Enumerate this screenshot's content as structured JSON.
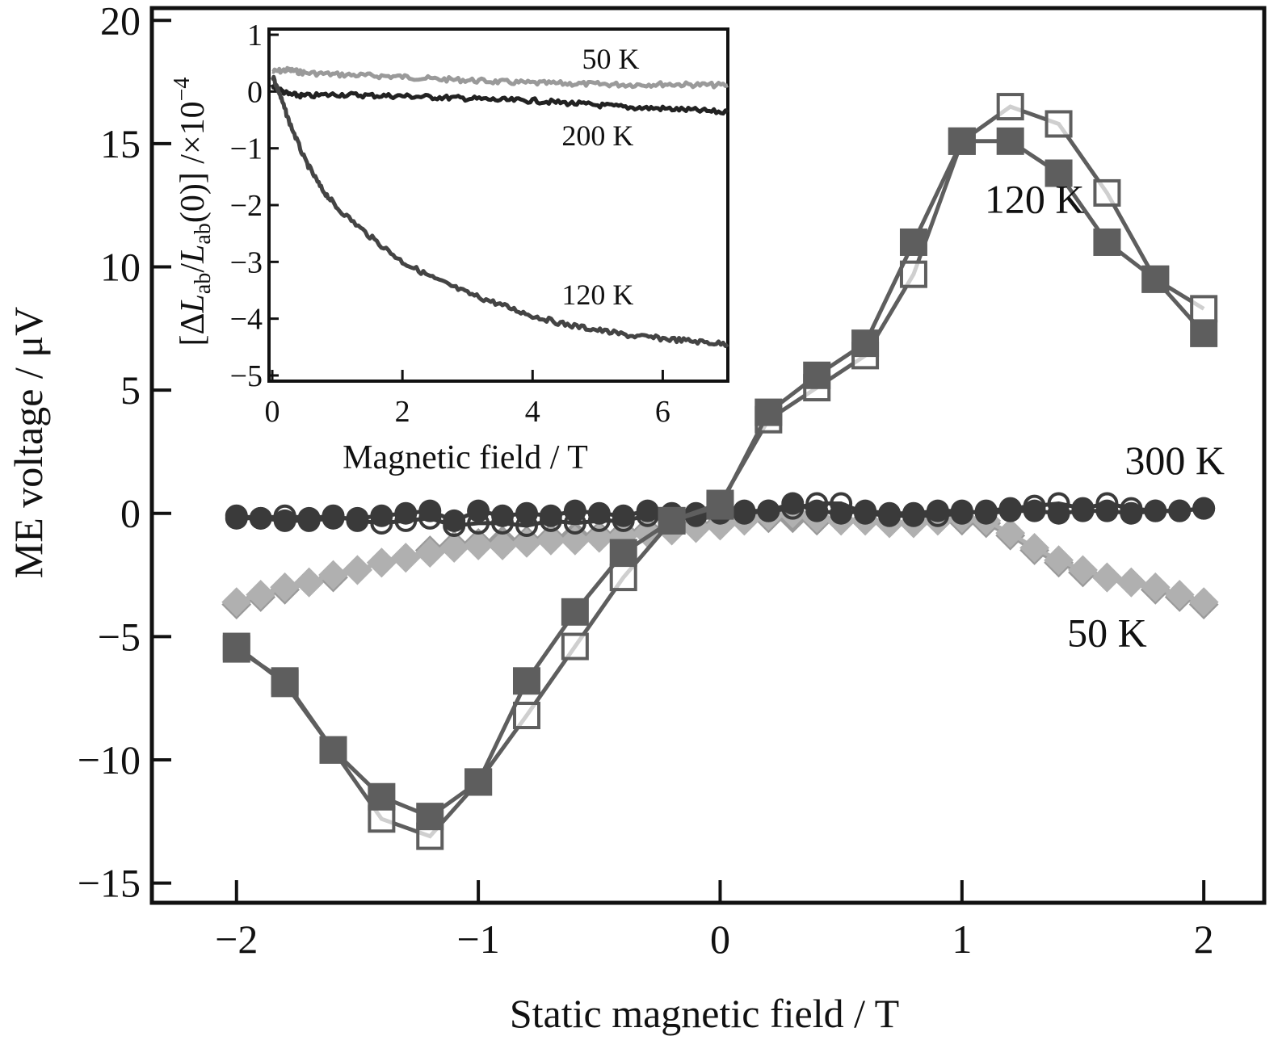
{
  "colors": {
    "dark": "#3a3a3a",
    "mid": "#5e5e5e",
    "light": "#9a9a9a",
    "axis": "#111111"
  },
  "chart_data": [
    {
      "type": "scatter",
      "xlabel": "Static magnetic field / T",
      "ylabel": "ME voltage / μV",
      "xlim": [
        -2.35,
        2.25
      ],
      "ylim": [
        -15.8,
        20.5
      ],
      "xticks": [
        -2,
        -1,
        0,
        1,
        2
      ],
      "xtick_labels": [
        "−2",
        "−1",
        "0",
        "1",
        "2"
      ],
      "yticks": [
        -15,
        -10,
        -5,
        0,
        5,
        10,
        15,
        20
      ],
      "ytick_labels": [
        "−15",
        "−10",
        "−5",
        "0",
        "5",
        "10",
        "15",
        "20"
      ],
      "annotations": [
        {
          "text": "120 K",
          "x": 1.3,
          "y": 12.2
        },
        {
          "text": "300 K",
          "x": 1.88,
          "y": 1.6
        },
        {
          "text": "50 K",
          "x": 1.6,
          "y": -5.4
        }
      ],
      "series": [
        {
          "label_ref": "120 K",
          "marker": "square-filled",
          "color": "#5e5e5e",
          "x": [
            -2.0,
            -1.8,
            -1.6,
            -1.4,
            -1.2,
            -1.0,
            -0.8,
            -0.6,
            -0.4,
            -0.2,
            0.0,
            0.2,
            0.4,
            0.6,
            0.8,
            1.0,
            1.2,
            1.4,
            1.6,
            1.8,
            2.0
          ],
          "y": [
            -5.5,
            -6.8,
            -9.6,
            -11.5,
            -12.3,
            -10.9,
            -6.8,
            -4.0,
            -1.6,
            -0.3,
            0.3,
            4.1,
            5.6,
            6.9,
            11.0,
            15.1,
            15.1,
            13.8,
            11.0,
            9.5,
            7.3
          ]
        },
        {
          "label_ref": "120 K",
          "marker": "square-open",
          "color": "#5e5e5e",
          "x": [
            -2.0,
            -1.8,
            -1.6,
            -1.4,
            -1.2,
            -1.0,
            -0.8,
            -0.6,
            -0.4,
            -0.2,
            0.0,
            0.2,
            0.4,
            0.6,
            0.8,
            1.0,
            1.2,
            1.4,
            1.6,
            1.8,
            2.0
          ],
          "y": [
            -5.4,
            -6.9,
            -9.6,
            -12.4,
            -13.1,
            -10.9,
            -8.2,
            -5.4,
            -2.6,
            -0.3,
            0.4,
            3.8,
            5.1,
            6.4,
            9.7,
            15.1,
            16.5,
            15.8,
            13.0,
            9.5,
            8.3
          ]
        },
        {
          "label_ref": "300 K",
          "marker": "circle-filled",
          "color": "#3a3a3a",
          "x": [
            -2.0,
            -1.9,
            -1.8,
            -1.7,
            -1.6,
            -1.5,
            -1.4,
            -1.3,
            -1.2,
            -1.1,
            -1.0,
            -0.9,
            -0.8,
            -0.7,
            -0.6,
            -0.5,
            -0.4,
            -0.3,
            -0.2,
            -0.1,
            0.0,
            0.1,
            0.2,
            0.3,
            0.4,
            0.5,
            0.6,
            0.7,
            0.8,
            0.9,
            1.0,
            1.1,
            1.2,
            1.3,
            1.4,
            1.5,
            1.6,
            1.7,
            1.8,
            1.9,
            2.0
          ],
          "y": [
            -0.2,
            -0.2,
            -0.3,
            -0.3,
            -0.2,
            -0.2,
            -0.1,
            0.0,
            0.1,
            -0.3,
            0.1,
            -0.1,
            0.0,
            -0.1,
            0.1,
            0.0,
            -0.1,
            0.1,
            0.0,
            -0.1,
            0.0,
            0.1,
            0.1,
            0.4,
            0.1,
            0.0,
            0.1,
            0.0,
            0.0,
            0.1,
            0.1,
            0.0,
            0.1,
            0.1,
            0.0,
            0.1,
            0.1,
            0.0,
            0.1,
            0.1,
            0.2
          ]
        },
        {
          "label_ref": "300 K",
          "marker": "circle-open",
          "color": "#3a3a3a",
          "x": [
            -2.0,
            -1.9,
            -1.8,
            -1.7,
            -1.6,
            -1.5,
            -1.4,
            -1.3,
            -1.2,
            -1.1,
            -1.0,
            -0.9,
            -0.8,
            -0.7,
            -0.6,
            -0.5,
            -0.4,
            -0.3,
            -0.2,
            -0.1,
            0.0,
            0.1,
            0.2,
            0.3,
            0.4,
            0.5,
            0.6,
            0.7,
            0.8,
            0.9,
            1.0,
            1.1,
            1.2,
            1.3,
            1.4,
            1.5,
            1.6,
            1.7,
            1.8,
            1.9,
            2.0
          ],
          "y": [
            -0.1,
            -0.2,
            -0.1,
            -0.2,
            -0.1,
            -0.3,
            -0.4,
            -0.3,
            -0.2,
            -0.5,
            -0.4,
            -0.4,
            -0.5,
            -0.3,
            -0.4,
            -0.3,
            -0.3,
            -0.1,
            -0.1,
            0.0,
            0.1,
            0.0,
            0.1,
            0.2,
            0.4,
            0.4,
            0.0,
            -0.1,
            -0.1,
            -0.1,
            0.0,
            0.1,
            0.2,
            0.3,
            0.4,
            0.2,
            0.4,
            0.2,
            0.1,
            0.1,
            0.2
          ]
        },
        {
          "label_ref": "50 K",
          "marker": "diamond-filled",
          "color": "#9a9a9a",
          "x": [
            -2.0,
            -1.9,
            -1.8,
            -1.7,
            -1.6,
            -1.5,
            -1.4,
            -1.3,
            -1.2,
            -1.1,
            -1.0,
            -0.9,
            -0.8,
            -0.7,
            -0.6,
            -0.5,
            -0.4,
            -0.3,
            -0.2,
            -0.1,
            0.0,
            0.1,
            0.2,
            0.3,
            0.4,
            0.5,
            0.6,
            0.7,
            0.8,
            0.9,
            1.0,
            1.1,
            1.2,
            1.3,
            1.4,
            1.5,
            1.6,
            1.7,
            1.8,
            1.9,
            2.0
          ],
          "y": [
            -3.7,
            -3.4,
            -3.1,
            -2.8,
            -2.6,
            -2.3,
            -2.0,
            -1.8,
            -1.5,
            -1.3,
            -1.2,
            -1.1,
            -1.1,
            -1.0,
            -0.9,
            -0.9,
            -0.8,
            -0.7,
            -0.6,
            -0.5,
            -0.4,
            -0.3,
            -0.2,
            -0.2,
            -0.3,
            -0.3,
            -0.3,
            -0.4,
            -0.4,
            -0.3,
            -0.3,
            -0.4,
            -0.9,
            -1.5,
            -2.0,
            -2.4,
            -2.6,
            -2.8,
            -3.1,
            -3.4,
            -3.7
          ]
        },
        {
          "label_ref": "50 K",
          "marker": "diamond-light",
          "color": "#b0b0b0",
          "x": [
            -2.0,
            -1.9,
            -1.8,
            -1.7,
            -1.6,
            -1.5,
            -1.4,
            -1.3,
            -1.2,
            -1.1,
            -1.0,
            -0.9,
            -0.8,
            -0.7,
            -0.6,
            -0.5,
            -0.4,
            -0.3,
            -0.2,
            -0.1,
            0.0,
            0.1,
            0.2,
            0.3,
            0.4,
            0.5,
            0.6,
            0.7,
            0.8,
            0.9,
            1.0,
            1.1,
            1.2,
            1.3,
            1.4,
            1.5,
            1.6,
            1.7,
            1.8,
            1.9,
            2.0
          ],
          "y": [
            -3.6,
            -3.3,
            -3.0,
            -2.8,
            -2.5,
            -2.3,
            -2.0,
            -1.8,
            -1.6,
            -1.4,
            -1.3,
            -1.3,
            -1.2,
            -1.1,
            -1.1,
            -1.0,
            -0.9,
            -0.8,
            -0.7,
            -0.6,
            -0.5,
            -0.3,
            -0.1,
            0.0,
            -0.2,
            -0.3,
            -0.3,
            -0.4,
            -0.4,
            -0.3,
            -0.2,
            -0.3,
            -0.8,
            -1.4,
            -1.9,
            -2.3,
            -2.6,
            -2.8,
            -3.0,
            -3.3,
            -3.6
          ]
        }
      ]
    },
    {
      "type": "line",
      "xlabel": "Magnetic field / T",
      "ylabel": "[ΔLab/Lab(0)] /×10⁻⁴",
      "ylabel_parts": {
        "bracket_open": "[Δ",
        "L": "L",
        "ab": "ab",
        "slash": "/",
        "zero": "(0)] /×10",
        "exp": "−4"
      },
      "xlim": [
        -0.05,
        7.0
      ],
      "ylim": [
        -5.1,
        1.1
      ],
      "xticks": [
        0,
        2,
        4,
        6
      ],
      "xtick_labels": [
        "0",
        "2",
        "4",
        "6"
      ],
      "yticks": [
        1,
        0,
        -1,
        -2,
        -3,
        -4,
        -5
      ],
      "ytick_labels": [
        "1",
        "0",
        "−1",
        "−2",
        "−3",
        "−4",
        "−5"
      ],
      "annotations": [
        {
          "text": "50 K",
          "x": 5.2,
          "y": 0.4
        },
        {
          "text": "200 K",
          "x": 5.0,
          "y": -0.95
        },
        {
          "text": "120 K",
          "x": 5.0,
          "y": -3.75
        }
      ],
      "series": [
        {
          "label_ref": "50 K",
          "color": "#9a9a9a",
          "x": [
            0.0,
            0.25,
            0.5,
            1.0,
            1.5,
            2.0,
            2.5,
            3.0,
            3.5,
            4.0,
            4.5,
            5.0,
            5.5,
            6.0,
            6.5,
            7.0
          ],
          "y": [
            0.35,
            0.38,
            0.33,
            0.3,
            0.28,
            0.26,
            0.22,
            0.2,
            0.17,
            0.15,
            0.14,
            0.13,
            0.12,
            0.13,
            0.12,
            0.11
          ]
        },
        {
          "label_ref": "200 K",
          "color": "#222222",
          "x": [
            0.0,
            0.25,
            0.5,
            1.0,
            1.5,
            2.0,
            2.5,
            3.0,
            3.5,
            4.0,
            4.5,
            5.0,
            5.5,
            6.0,
            6.5,
            7.0
          ],
          "y": [
            0.1,
            -0.05,
            -0.08,
            -0.05,
            -0.07,
            -0.08,
            -0.1,
            -0.12,
            -0.15,
            -0.16,
            -0.2,
            -0.24,
            -0.28,
            -0.3,
            -0.33,
            -0.37
          ]
        },
        {
          "label_ref": "120 K",
          "color": "#444444",
          "x": [
            0.0,
            0.1,
            0.25,
            0.5,
            0.75,
            1.0,
            1.5,
            2.0,
            2.5,
            3.0,
            3.5,
            4.0,
            4.5,
            5.0,
            5.5,
            6.0,
            6.5,
            7.0
          ],
          "y": [
            0.3,
            0.0,
            -0.5,
            -1.2,
            -1.7,
            -2.05,
            -2.55,
            -3.0,
            -3.3,
            -3.55,
            -3.75,
            -3.95,
            -4.1,
            -4.2,
            -4.3,
            -4.35,
            -4.4,
            -4.45
          ]
        }
      ]
    }
  ]
}
